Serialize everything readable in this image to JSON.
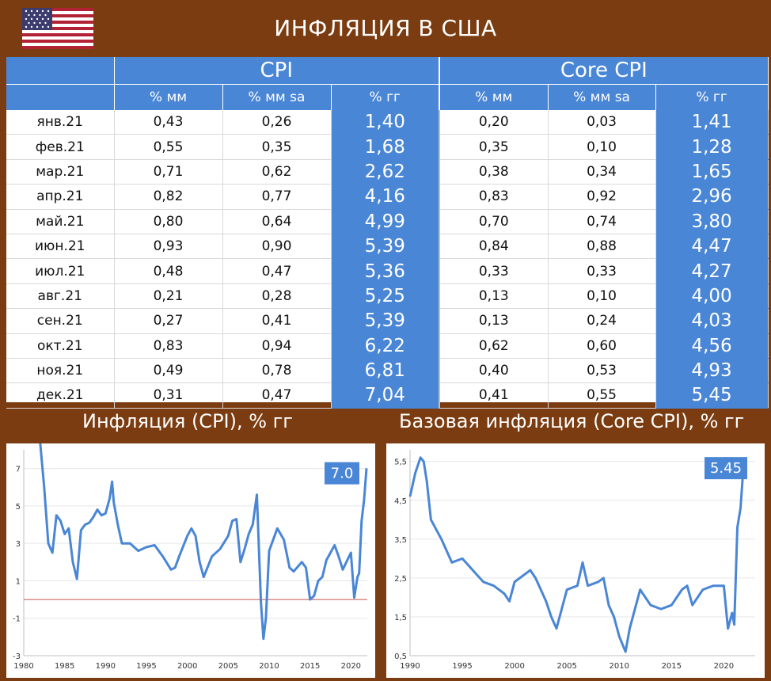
{
  "page_title": "ИНФЛЯЦИЯ В США",
  "table": {
    "group_headers": [
      "CPI",
      "Core CPI"
    ],
    "sub_headers": [
      "% мм",
      "% мм sa",
      "% гг",
      "% мм",
      "% мм sa",
      "% гг"
    ],
    "rows": [
      {
        "month": "янв.21",
        "cpi_mm": "0,43",
        "cpi_mm_sa": "0,26",
        "cpi_yy": "1,40",
        "core_mm": "0,20",
        "core_mm_sa": "0,03",
        "core_yy": "1,41"
      },
      {
        "month": "фев.21",
        "cpi_mm": "0,55",
        "cpi_mm_sa": "0,35",
        "cpi_yy": "1,68",
        "core_mm": "0,35",
        "core_mm_sa": "0,10",
        "core_yy": "1,28"
      },
      {
        "month": "мар.21",
        "cpi_mm": "0,71",
        "cpi_mm_sa": "0,62",
        "cpi_yy": "2,62",
        "core_mm": "0,38",
        "core_mm_sa": "0,34",
        "core_yy": "1,65"
      },
      {
        "month": "апр.21",
        "cpi_mm": "0,82",
        "cpi_mm_sa": "0,77",
        "cpi_yy": "4,16",
        "core_mm": "0,83",
        "core_mm_sa": "0,92",
        "core_yy": "2,96"
      },
      {
        "month": "май.21",
        "cpi_mm": "0,80",
        "cpi_mm_sa": "0,64",
        "cpi_yy": "4,99",
        "core_mm": "0,70",
        "core_mm_sa": "0,74",
        "core_yy": "3,80"
      },
      {
        "month": "июн.21",
        "cpi_mm": "0,93",
        "cpi_mm_sa": "0,90",
        "cpi_yy": "5,39",
        "core_mm": "0,84",
        "core_mm_sa": "0,88",
        "core_yy": "4,47"
      },
      {
        "month": "июл.21",
        "cpi_mm": "0,48",
        "cpi_mm_sa": "0,47",
        "cpi_yy": "5,36",
        "core_mm": "0,33",
        "core_mm_sa": "0,33",
        "core_yy": "4,27"
      },
      {
        "month": "авг.21",
        "cpi_mm": "0,21",
        "cpi_mm_sa": "0,28",
        "cpi_yy": "5,25",
        "core_mm": "0,13",
        "core_mm_sa": "0,10",
        "core_yy": "4,00"
      },
      {
        "month": "сен.21",
        "cpi_mm": "0,27",
        "cpi_mm_sa": "0,41",
        "cpi_yy": "5,39",
        "core_mm": "0,13",
        "core_mm_sa": "0,24",
        "core_yy": "4,03"
      },
      {
        "month": "окт.21",
        "cpi_mm": "0,83",
        "cpi_mm_sa": "0,94",
        "cpi_yy": "6,22",
        "core_mm": "0,62",
        "core_mm_sa": "0,60",
        "core_yy": "4,56"
      },
      {
        "month": "ноя.21",
        "cpi_mm": "0,49",
        "cpi_mm_sa": "0,78",
        "cpi_yy": "6,81",
        "core_mm": "0,40",
        "core_mm_sa": "0,53",
        "core_yy": "4,93"
      },
      {
        "month": "дек.21",
        "cpi_mm": "0,31",
        "cpi_mm_sa": "0,47",
        "cpi_yy": "7,04",
        "core_mm": "0,41",
        "core_mm_sa": "0,55",
        "core_yy": "5,45"
      }
    ]
  },
  "colors": {
    "background": "#7a3c10",
    "accent": "#4a86d6",
    "line": "#4a86d6",
    "zero_line": "#c0504d"
  },
  "chart_data": [
    {
      "type": "line",
      "title": "Инфляция (CPI), % гг",
      "callout": "7.0",
      "ylim": [
        -3,
        8
      ],
      "yticks": [
        "7",
        "5",
        "3",
        "1",
        "-1",
        "-3"
      ],
      "ytick_values": [
        7,
        5,
        3,
        1,
        -1,
        -3
      ],
      "xlim": [
        1980,
        2022
      ],
      "xticks": [
        "1980",
        "1985",
        "1990",
        "1995",
        "2000",
        "2005",
        "2010",
        "2015",
        "2020"
      ],
      "xtick_values": [
        1980,
        1985,
        1990,
        1995,
        2000,
        2005,
        2010,
        2015,
        2020
      ],
      "reference_line": 0,
      "series": [
        {
          "x": [
            1982.0,
            1982.5,
            1983.0,
            1983.5,
            1984.0,
            1984.5,
            1985.0,
            1985.5,
            1986.0,
            1986.5,
            1987.0,
            1987.5,
            1988.0,
            1988.5,
            1989.0,
            1989.5,
            1990.0,
            1990.5,
            1990.8,
            1991.0,
            1991.5,
            1992.0,
            1993.0,
            1994.0,
            1995.0,
            1996.0,
            1997.0,
            1998.0,
            1998.5,
            1999.0,
            2000.0,
            2000.5,
            2001.0,
            2001.5,
            2002.0,
            2003.0,
            2004.0,
            2005.0,
            2005.5,
            2006.0,
            2006.5,
            2007.0,
            2007.5,
            2008.0,
            2008.5,
            2009.0,
            2009.3,
            2009.6,
            2010.0,
            2011.0,
            2011.8,
            2012.5,
            2013.0,
            2014.0,
            2014.5,
            2015.0,
            2015.5,
            2016.0,
            2016.5,
            2017.0,
            2018.0,
            2018.5,
            2019.0,
            2020.0,
            2020.4,
            2020.8,
            2021.0,
            2021.3,
            2021.6,
            2021.9
          ],
          "values": [
            8.4,
            6.0,
            3.0,
            2.5,
            4.5,
            4.2,
            3.5,
            3.8,
            2.0,
            1.1,
            3.7,
            4.0,
            4.1,
            4.4,
            4.8,
            4.5,
            4.6,
            5.4,
            6.3,
            5.2,
            4.0,
            3.0,
            3.0,
            2.6,
            2.8,
            2.9,
            2.3,
            1.6,
            1.7,
            2.3,
            3.4,
            3.8,
            3.4,
            2.0,
            1.2,
            2.3,
            2.7,
            3.4,
            4.2,
            4.3,
            2.0,
            2.7,
            3.5,
            4.0,
            5.6,
            -0.2,
            -2.1,
            -1.0,
            2.6,
            3.8,
            3.2,
            1.7,
            1.5,
            2.0,
            1.7,
            0.0,
            0.2,
            1.0,
            1.2,
            2.1,
            2.9,
            2.3,
            1.6,
            2.5,
            0.1,
            1.2,
            1.4,
            4.2,
            5.3,
            7.0
          ]
        }
      ]
    },
    {
      "type": "line",
      "title": "Базовая инфляция (Core CPI), % гг",
      "callout": "5.45",
      "ylim": [
        0.5,
        5.8
      ],
      "yticks": [
        "5,5",
        "4,5",
        "3,5",
        "2,5",
        "1,5",
        "0,5"
      ],
      "ytick_values": [
        5.5,
        4.5,
        3.5,
        2.5,
        1.5,
        0.5
      ],
      "xlim": [
        1990,
        2023
      ],
      "xticks": [
        "1990",
        "1995",
        "2000",
        "2005",
        "2010",
        "2015",
        "2020"
      ],
      "xtick_values": [
        1990,
        1995,
        2000,
        2005,
        2010,
        2015,
        2020
      ],
      "series": [
        {
          "x": [
            1990.0,
            1990.5,
            1991.0,
            1991.3,
            1991.6,
            1992.0,
            1993.0,
            1994.0,
            1995.0,
            1996.0,
            1997.0,
            1998.0,
            1999.0,
            1999.5,
            2000.0,
            2001.0,
            2001.5,
            2002.0,
            2002.5,
            2003.0,
            2003.5,
            2004.0,
            2004.5,
            2005.0,
            2006.0,
            2006.5,
            2007.0,
            2008.0,
            2008.5,
            2009.0,
            2009.5,
            2010.0,
            2010.6,
            2011.0,
            2012.0,
            2013.0,
            2014.0,
            2015.0,
            2016.0,
            2016.5,
            2017.0,
            2018.0,
            2019.0,
            2020.0,
            2020.4,
            2020.8,
            2021.0,
            2021.3,
            2021.6,
            2021.9
          ],
          "values": [
            4.6,
            5.2,
            5.6,
            5.5,
            5.0,
            4.0,
            3.5,
            2.9,
            3.0,
            2.7,
            2.4,
            2.3,
            2.1,
            1.9,
            2.4,
            2.6,
            2.7,
            2.5,
            2.2,
            1.9,
            1.5,
            1.2,
            1.7,
            2.2,
            2.3,
            2.9,
            2.3,
            2.4,
            2.5,
            1.8,
            1.5,
            1.0,
            0.6,
            1.2,
            2.2,
            1.8,
            1.7,
            1.8,
            2.2,
            2.3,
            1.8,
            2.2,
            2.3,
            2.3,
            1.2,
            1.6,
            1.3,
            3.8,
            4.3,
            5.45
          ]
        }
      ]
    }
  ]
}
